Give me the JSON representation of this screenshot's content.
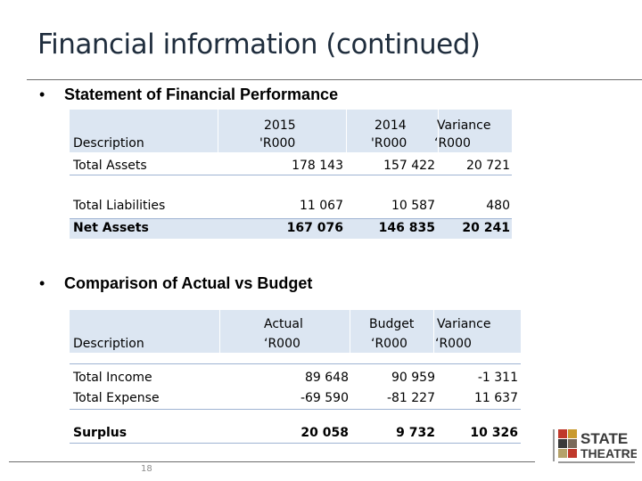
{
  "slide": {
    "title": "Financial information (continued)",
    "page_number": "18"
  },
  "section1": {
    "bullet": "•",
    "heading": "Statement of Financial Performance",
    "headers": {
      "description": "Description",
      "col1_line1": "2015",
      "col1_line2": "'R000",
      "col2_line1": "2014",
      "col2_line2": "'R000",
      "col3_line1": "Variance",
      "col3_line2": "‘R000"
    },
    "rows": [
      {
        "label": "Total Assets",
        "v2015": "178 143",
        "v2014": "157 422",
        "variance": "20 721"
      },
      {
        "label": "Total Liabilities",
        "v2015": "11 067",
        "v2014": "10 587",
        "variance": "480"
      },
      {
        "label": "Net Assets",
        "v2015": "167 076",
        "v2014": "146 835",
        "variance": "20 241"
      }
    ]
  },
  "section2": {
    "bullet": "•",
    "heading": "Comparison of Actual vs Budget",
    "headers": {
      "description": "Description",
      "col1_line1": "Actual",
      "col1_line2": "‘R000",
      "col2_line1": "Budget",
      "col2_line2": "‘R000",
      "col3_line1": "Variance",
      "col3_line2": "‘R000"
    },
    "rows": [
      {
        "label": "Total Income",
        "actual": "89 648",
        "budget": "90 959",
        "variance": "-1 311"
      },
      {
        "label": "Total Expense",
        "actual": "-69 590",
        "budget": "-81 227",
        "variance": "11 637"
      },
      {
        "label": "Surplus",
        "actual": "20 058",
        "budget": "9 732",
        "variance": "10 326"
      }
    ]
  },
  "logo": {
    "line1": "STATE",
    "line2": "THEATRE",
    "colors": {
      "red": "#c0392b",
      "dark": "#3a3a3a",
      "gold": "#c99a2e"
    }
  }
}
